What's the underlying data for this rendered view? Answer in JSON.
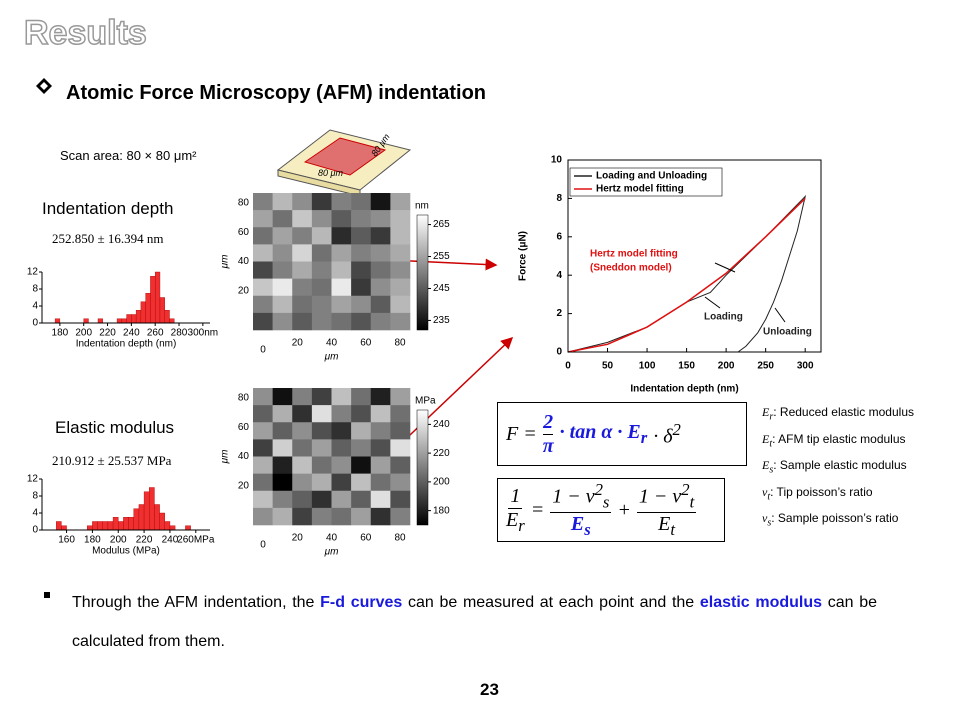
{
  "slide": {
    "title": "Results",
    "heading": "Atomic Force Microscopy (AFM) indentation",
    "scan_area": "Scan area: 80 × 80 μm²",
    "sample_labels": [
      "80 μm",
      "80 μm"
    ],
    "page_number": "23"
  },
  "depth": {
    "label": "Indentation depth",
    "stat": "252.850 ± 16.394 nm"
  },
  "modulus": {
    "label": "Elastic modulus",
    "stat": "210.912 ± 25.537 MPa"
  },
  "formula_force": {
    "lhs": "F =",
    "num": "2",
    "den": "π",
    "mid": "· tan α · E",
    "mid_sub": "r",
    "tail": "· δ",
    "tail_sup": "2"
  },
  "formula_modulus": {
    "num": "1",
    "den": "E",
    "den_sub": "r",
    "eq": "=",
    "t1_num": "1 − ν",
    "t1_sup": "2",
    "t1_sub": "s",
    "t1_den": "E",
    "t1_den_sub": "s",
    "plus": "+",
    "t2_num": "1 − ν",
    "t2_sup": "2",
    "t2_sub": "t",
    "t2_den": "E",
    "t2_den_sub": "t"
  },
  "definitions": [
    {
      "symbol": "E",
      "sub": "r",
      "text": ": Reduced elastic modulus"
    },
    {
      "symbol": "E",
      "sub": "t",
      "text": ": AFM tip elastic modulus"
    },
    {
      "symbol": "E",
      "sub": "s",
      "text": ": Sample elastic modulus"
    },
    {
      "symbol": "ν",
      "sub": "t",
      "text": ": Tip poisson’s ratio"
    },
    {
      "symbol": "ν",
      "sub": "s",
      "text": ": Sample poisson’s ratio"
    }
  ],
  "bullet": {
    "parts": [
      {
        "text": "Through the AFM indentation, the ",
        "color": "#000000"
      },
      {
        "text": "F-d curves",
        "color": "#1a1adc"
      },
      {
        "text": " can be measured at each point and the ",
        "color": "#000000"
      },
      {
        "text": "elastic modulus",
        "color": "#1a1adc"
      },
      {
        "text": " can be calculated from them.",
        "color": "#000000"
      }
    ]
  },
  "chart_data": [
    {
      "type": "histogram",
      "x_label": "Indentation depth (nm)",
      "color": "#f03030",
      "bins": [
        176,
        180,
        184,
        188,
        192,
        196,
        200,
        204,
        208,
        212,
        216,
        220,
        224,
        228,
        232,
        236,
        240,
        244,
        248,
        252,
        256,
        260,
        264,
        268,
        272,
        276,
        280,
        284
      ],
      "values": [
        1,
        0,
        0,
        0,
        0,
        0,
        1,
        0,
        0,
        1,
        0,
        0,
        0,
        1,
        1,
        2,
        2,
        3,
        5,
        7,
        11,
        12,
        6,
        3,
        1,
        0,
        0
      ],
      "xlim": [
        165,
        306
      ],
      "xticks": [
        180,
        200,
        220,
        240,
        260,
        280,
        {
          "value": 300,
          "label": "300nm"
        }
      ],
      "ylim": [
        0,
        12
      ],
      "yticks": [
        0,
        4,
        8,
        12
      ]
    },
    {
      "type": "heatmap",
      "values": [
        [
          250,
          258,
          252,
          240,
          250,
          248,
          235,
          255
        ],
        [
          255,
          248,
          260,
          252,
          245,
          250,
          252,
          258
        ],
        [
          248,
          255,
          250,
          258,
          238,
          245,
          240,
          258
        ],
        [
          258,
          252,
          262,
          248,
          255,
          250,
          252,
          256
        ],
        [
          242,
          250,
          256,
          250,
          258,
          242,
          248,
          252
        ],
        [
          260,
          265,
          250,
          248,
          265,
          240,
          252,
          256
        ],
        [
          250,
          258,
          248,
          250,
          255,
          252,
          245,
          258
        ],
        [
          242,
          252,
          245,
          250,
          248,
          244,
          250,
          252
        ]
      ],
      "xlim": [
        0,
        80
      ],
      "ylim": [
        0,
        80
      ],
      "xticks": [
        0,
        20,
        40,
        60,
        80
      ],
      "yticks": [
        20,
        40,
        60,
        80
      ],
      "x_label": "μm",
      "y_label": "μm",
      "colorbar_label": "nm",
      "clim": [
        232,
        268
      ],
      "cticks": [
        235,
        245,
        255,
        265
      ]
    },
    {
      "type": "histogram",
      "x_label": "Modulus (MPa)",
      "color": "#f03030",
      "bins": [
        152,
        156,
        160,
        164,
        168,
        172,
        176,
        180,
        184,
        188,
        192,
        196,
        200,
        204,
        208,
        212,
        216,
        220,
        224,
        228,
        232,
        236,
        240,
        244,
        248,
        252,
        256,
        260
      ],
      "values": [
        2,
        1,
        0,
        0,
        0,
        0,
        1,
        2,
        2,
        2,
        2,
        3,
        2,
        3,
        3,
        5,
        6,
        9,
        10,
        6,
        4,
        2,
        1,
        0,
        0,
        1,
        0
      ],
      "xlim": [
        141,
        271
      ],
      "xticks": [
        160,
        180,
        200,
        220,
        240,
        {
          "value": 260,
          "label": "260MPa"
        }
      ],
      "ylim": [
        0,
        12
      ],
      "yticks": [
        0,
        4,
        8,
        12
      ]
    },
    {
      "type": "heatmap",
      "values": [
        [
          215,
          175,
          210,
          190,
          230,
          205,
          180,
          220
        ],
        [
          200,
          225,
          185,
          240,
          210,
          195,
          230,
          205
        ],
        [
          220,
          200,
          215,
          195,
          185,
          225,
          210,
          200
        ],
        [
          190,
          235,
          205,
          220,
          200,
          210,
          195,
          240
        ],
        [
          225,
          180,
          230,
          205,
          215,
          175,
          220,
          200
        ],
        [
          205,
          170,
          215,
          225,
          190,
          230,
          205,
          215
        ],
        [
          230,
          210,
          200,
          185,
          220,
          200,
          240,
          195
        ],
        [
          215,
          225,
          190,
          210,
          205,
          220,
          185,
          210
        ]
      ],
      "xlim": [
        0,
        80
      ],
      "ylim": [
        0,
        80
      ],
      "xticks": [
        0,
        20,
        40,
        60,
        80
      ],
      "yticks": [
        20,
        40,
        60,
        80
      ],
      "x_label": "μm",
      "y_label": "μm",
      "colorbar_label": "MPa",
      "clim": [
        170,
        250
      ],
      "cticks": [
        180,
        200,
        220,
        240
      ]
    },
    {
      "type": "line",
      "x_label": "Indentation depth (nm)",
      "y_label": "Force (μN)",
      "xlim": [
        0,
        320
      ],
      "ylim": [
        0,
        10
      ],
      "xticks": [
        0,
        50,
        100,
        150,
        200,
        250,
        300
      ],
      "yticks": [
        0,
        2,
        4,
        6,
        8,
        10
      ],
      "series": [
        {
          "name": "Loading and Unloading",
          "color": "#222222",
          "x": [
            0,
            50,
            100,
            150,
            180,
            200,
            250,
            300,
            290,
            280,
            270,
            260,
            250,
            240,
            225,
            215
          ],
          "values": [
            0,
            0.5,
            1.3,
            2.6,
            3.1,
            4.0,
            6.0,
            8.1,
            6.3,
            5.0,
            3.7,
            2.6,
            1.7,
            1.0,
            0.3,
            0
          ]
        },
        {
          "name": "Hertz model fitting",
          "color": "#e01010",
          "x": [
            0,
            50,
            100,
            150,
            200,
            250,
            300
          ],
          "values": [
            0,
            0.4,
            1.3,
            2.6,
            4.1,
            6.0,
            8.0
          ]
        }
      ],
      "annotations": [
        {
          "text": "Hertz model fitting",
          "color": "#e01010"
        },
        {
          "text": "(Sneddon model)",
          "color": "#e01010"
        },
        {
          "text": "Loading",
          "color": "#222222"
        },
        {
          "text": "Unloading",
          "color": "#222222"
        }
      ]
    }
  ]
}
